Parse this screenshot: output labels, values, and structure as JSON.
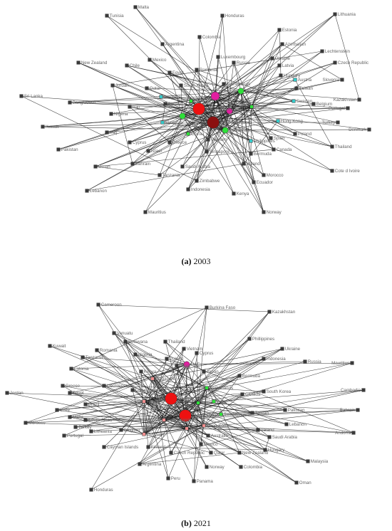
{
  "colors": {
    "small": "#3a3a3a",
    "cyan": "#36c8c8",
    "green": "#2fe03a",
    "magenta": "#e21fa0",
    "red": "#ee1111",
    "darkred": "#8b1010",
    "pink": "#f08f8f",
    "gray": "#8a8a8a"
  },
  "panels": [
    {
      "id": "a",
      "caption": {
        "letter": "(a)",
        "year": "2003"
      },
      "nodes": [
        {
          "name": "Malta",
          "size": "s",
          "color": "small"
        },
        {
          "name": "Tunisia",
          "size": "s",
          "color": "small"
        },
        {
          "name": "Honduras",
          "size": "s",
          "color": "small"
        },
        {
          "name": "Lithuania",
          "size": "s",
          "color": "small"
        },
        {
          "name": "Colombia",
          "size": "s",
          "color": "small"
        },
        {
          "name": "Argentina",
          "size": "s",
          "color": "small"
        },
        {
          "name": "Estonia",
          "size": "s",
          "color": "small"
        },
        {
          "name": "Azerbaijan",
          "size": "s",
          "color": "small"
        },
        {
          "name": "Lechtenstein",
          "size": "s",
          "color": "small"
        },
        {
          "name": "New Zealand",
          "size": "s",
          "color": "small"
        },
        {
          "name": "Mexico",
          "size": "s",
          "color": "small"
        },
        {
          "name": "Chile",
          "size": "s",
          "color": "small"
        },
        {
          "name": "Luxembourg",
          "size": "s",
          "color": "small"
        },
        {
          "name": "Ukraine",
          "size": "s",
          "color": "small"
        },
        {
          "name": "Latvia",
          "size": "s",
          "color": "small"
        },
        {
          "name": "Czech Republic",
          "size": "s",
          "color": "small"
        },
        {
          "name": "Russia",
          "size": "s",
          "color": "small"
        },
        {
          "name": "Hungary",
          "size": "s",
          "color": "small"
        },
        {
          "name": "Austria",
          "size": "s",
          "color": "cyan"
        },
        {
          "name": "Slovenia",
          "size": "s",
          "color": "small"
        },
        {
          "name": "Qatar",
          "size": "s",
          "color": "small"
        },
        {
          "name": "Jordan",
          "size": "s",
          "color": "small"
        },
        {
          "name": "Romania",
          "size": "s",
          "color": "small"
        },
        {
          "name": "Egypt",
          "size": "s",
          "color": "small"
        },
        {
          "name": "Taiwan",
          "size": "s",
          "color": "small"
        },
        {
          "name": "Sri Lanka",
          "size": "s",
          "color": "small"
        },
        {
          "name": "Bangladesh",
          "size": "s",
          "color": "small"
        },
        {
          "name": "South Korea",
          "size": "s",
          "color": "small"
        },
        {
          "name": "Australia",
          "size": "s",
          "color": "cyan"
        },
        {
          "name": "Netherlands",
          "size": "s",
          "color": "small"
        },
        {
          "name": "France",
          "size": "m",
          "color": "green"
        },
        {
          "name": "Kazakhstan",
          "size": "s",
          "color": "small"
        },
        {
          "name": "Nigeria",
          "size": "s",
          "color": "small"
        },
        {
          "name": "Iran",
          "size": "s",
          "color": "small"
        },
        {
          "name": "Belgium",
          "size": "s",
          "color": "small"
        },
        {
          "name": "Sweden",
          "size": "s",
          "color": "cyan"
        },
        {
          "name": "Portugal",
          "size": "s",
          "color": "small"
        },
        {
          "name": "Kuwait",
          "size": "s",
          "color": "small"
        },
        {
          "name": "Iraq",
          "size": "s",
          "color": "small"
        },
        {
          "name": "Malaysia",
          "size": "s",
          "color": "cyan"
        },
        {
          "name": "United States",
          "size": "xl",
          "color": "red"
        },
        {
          "name": "Germany",
          "size": "l",
          "color": "magenta"
        },
        {
          "name": "United Kingdom",
          "size": "xl",
          "color": "darkred"
        },
        {
          "name": "Italy",
          "size": "m",
          "color": "magenta"
        },
        {
          "name": "Japan",
          "size": "s",
          "color": "green"
        },
        {
          "name": "Hong Kong",
          "size": "s",
          "color": "cyan"
        },
        {
          "name": "Turkey",
          "size": "s",
          "color": "small"
        },
        {
          "name": "Denmark",
          "size": "s",
          "color": "small"
        },
        {
          "name": "South Africa",
          "size": "m",
          "color": "green"
        },
        {
          "name": "Switzerland",
          "size": "m",
          "color": "green"
        },
        {
          "name": "Finland",
          "size": "s",
          "color": "small"
        },
        {
          "name": "Poland",
          "size": "s",
          "color": "small"
        },
        {
          "name": "Cyprus",
          "size": "s",
          "color": "small"
        },
        {
          "name": "India",
          "size": "s",
          "color": "green"
        },
        {
          "name": "China",
          "size": "s",
          "color": "green"
        },
        {
          "name": "Vietnam",
          "size": "s",
          "color": "small"
        },
        {
          "name": "Philippines",
          "size": "s",
          "color": "cyan"
        },
        {
          "name": "Spain",
          "size": "s",
          "color": "small"
        },
        {
          "name": "Thailand",
          "size": "s",
          "color": "small"
        },
        {
          "name": "Pakistan",
          "size": "s",
          "color": "small"
        },
        {
          "name": "Israel",
          "size": "s",
          "color": "small"
        },
        {
          "name": "Greece",
          "size": "s",
          "color": "small"
        },
        {
          "name": "Singapore",
          "size": "s",
          "color": "small"
        },
        {
          "name": "Bermuda",
          "size": "s",
          "color": "small"
        },
        {
          "name": "Canada",
          "size": "s",
          "color": "small"
        },
        {
          "name": "Bahrain",
          "size": "s",
          "color": "small"
        },
        {
          "name": "Oman",
          "size": "s",
          "color": "small"
        },
        {
          "name": "Ireland",
          "size": "s",
          "color": "small"
        },
        {
          "name": "Morocco",
          "size": "s",
          "color": "small"
        },
        {
          "name": "Cote d Ivoire",
          "size": "s",
          "color": "small"
        },
        {
          "name": "Saudi Arabia",
          "size": "s",
          "color": "small"
        },
        {
          "name": "Ecuador",
          "size": "s",
          "color": "small"
        },
        {
          "name": "Tanzania",
          "size": "s",
          "color": "small"
        },
        {
          "name": "Zimbabwe",
          "size": "s",
          "color": "small"
        },
        {
          "name": "Lebanon",
          "size": "s",
          "color": "small"
        },
        {
          "name": "Indonesia",
          "size": "s",
          "color": "small"
        },
        {
          "name": "Kenya",
          "size": "s",
          "color": "small"
        },
        {
          "name": "Mauritius",
          "size": "s",
          "color": "small"
        },
        {
          "name": "Norway",
          "size": "s",
          "color": "small"
        }
      ],
      "hubs": [
        "United States",
        "United Kingdom",
        "Germany",
        "Italy",
        "France",
        "Japan",
        "Switzerland",
        "South Africa"
      ]
    },
    {
      "id": "b",
      "caption": {
        "letter": "(b)",
        "year": "2021"
      },
      "nodes": [
        {
          "name": "Cameroon",
          "size": "s",
          "color": "small"
        },
        {
          "name": "Burkina Faso",
          "size": "s",
          "color": "small"
        },
        {
          "name": "Kazakhstan",
          "size": "s",
          "color": "small"
        },
        {
          "name": "Vanuatu",
          "size": "s",
          "color": "small"
        },
        {
          "name": "Botswana",
          "size": "s",
          "color": "small"
        },
        {
          "name": "Phillippines",
          "size": "s",
          "color": "small"
        },
        {
          "name": "Kuwait",
          "size": "s",
          "color": "small"
        },
        {
          "name": "Romania",
          "size": "s",
          "color": "small"
        },
        {
          "name": "Thailand",
          "size": "s",
          "color": "small"
        },
        {
          "name": "Ukraine",
          "size": "s",
          "color": "small"
        },
        {
          "name": "Tanzania",
          "size": "s",
          "color": "small"
        },
        {
          "name": "Nigeria",
          "size": "s",
          "color": "small"
        },
        {
          "name": "Vietnam",
          "size": "s",
          "color": "small"
        },
        {
          "name": "Cyprus",
          "size": "s",
          "color": "small"
        },
        {
          "name": "Indonesia",
          "size": "s",
          "color": "small"
        },
        {
          "name": "Russia",
          "size": "s",
          "color": "small"
        },
        {
          "name": "Mauritius",
          "size": "s",
          "color": "small"
        },
        {
          "name": "Estonia",
          "size": "s",
          "color": "small"
        },
        {
          "name": "Poland",
          "size": "s",
          "color": "small"
        },
        {
          "name": "Israel",
          "size": "s",
          "color": "small"
        },
        {
          "name": "Japan",
          "size": "s",
          "color": "small"
        },
        {
          "name": "Kenya",
          "size": "s",
          "color": "small"
        },
        {
          "name": "UAE",
          "size": "m",
          "color": "magenta"
        },
        {
          "name": "Singapore",
          "size": "s",
          "color": "pink"
        },
        {
          "name": "Bermuda",
          "size": "s",
          "color": "small"
        },
        {
          "name": "Jordan",
          "size": "s",
          "color": "small"
        },
        {
          "name": "Greece",
          "size": "s",
          "color": "small"
        },
        {
          "name": "Liechtenstein",
          "size": "s",
          "color": "small"
        },
        {
          "name": "Egypt",
          "size": "s",
          "color": "small"
        },
        {
          "name": "Luxembourg",
          "size": "s",
          "color": "small"
        },
        {
          "name": "United Kingdom",
          "size": "xl",
          "color": "red"
        },
        {
          "name": "Netherlands",
          "size": "s",
          "color": "green"
        },
        {
          "name": "Canada",
          "size": "s",
          "color": "small"
        },
        {
          "name": "South Korea",
          "size": "s",
          "color": "small"
        },
        {
          "name": "Cambodia",
          "size": "s",
          "color": "small"
        },
        {
          "name": "Chile",
          "size": "s",
          "color": "small"
        },
        {
          "name": "Brazil",
          "size": "s",
          "color": "small"
        },
        {
          "name": "France",
          "size": "s",
          "color": "pink"
        },
        {
          "name": "China",
          "size": "s",
          "color": "green"
        },
        {
          "name": "India",
          "size": "s",
          "color": "green"
        },
        {
          "name": "Taiwan",
          "size": "s",
          "color": "small"
        },
        {
          "name": "Pakistan",
          "size": "s",
          "color": "small"
        },
        {
          "name": "Bahrain",
          "size": "s",
          "color": "small"
        },
        {
          "name": "Morocco",
          "size": "s",
          "color": "small"
        },
        {
          "name": "Malta",
          "size": "s",
          "color": "small"
        },
        {
          "name": "South Africa",
          "size": "s",
          "color": "small"
        },
        {
          "name": "Turkey",
          "size": "s",
          "color": "small"
        },
        {
          "name": "United States",
          "size": "xl",
          "color": "red"
        },
        {
          "name": "Sweden",
          "size": "s",
          "color": "green"
        },
        {
          "name": "Switzerland",
          "size": "s",
          "color": "pink"
        },
        {
          "name": "Spain",
          "size": "s",
          "color": "pink"
        },
        {
          "name": "Hong Kong",
          "size": "s",
          "color": "pink"
        },
        {
          "name": "Ireland",
          "size": "s",
          "color": "small"
        },
        {
          "name": "Lebanon",
          "size": "s",
          "color": "small"
        },
        {
          "name": "Portugal",
          "size": "s",
          "color": "small"
        },
        {
          "name": "Lithuania",
          "size": "s",
          "color": "small"
        },
        {
          "name": "Belgium",
          "size": "s",
          "color": "small"
        },
        {
          "name": "Germany",
          "size": "s",
          "color": "pink"
        },
        {
          "name": "Australia",
          "size": "s",
          "color": "small"
        },
        {
          "name": "Saudi Arabia",
          "size": "s",
          "color": "small"
        },
        {
          "name": "Andorra",
          "size": "s",
          "color": "small"
        },
        {
          "name": "Cayman Islands",
          "size": "s",
          "color": "small"
        },
        {
          "name": "Finland",
          "size": "s",
          "color": "small"
        },
        {
          "name": "Mexico",
          "size": "s",
          "color": "small"
        },
        {
          "name": "Qatar",
          "size": "s",
          "color": "small"
        },
        {
          "name": "New Zealand",
          "size": "s",
          "color": "small"
        },
        {
          "name": "Hungary",
          "size": "s",
          "color": "small"
        },
        {
          "name": "Czech Republic",
          "size": "s",
          "color": "small"
        },
        {
          "name": "Malaysia",
          "size": "s",
          "color": "small"
        },
        {
          "name": "Norway",
          "size": "s",
          "color": "small"
        },
        {
          "name": "Colombia",
          "size": "s",
          "color": "small"
        },
        {
          "name": "Argentina",
          "size": "s",
          "color": "small"
        },
        {
          "name": "Peru",
          "size": "s",
          "color": "small"
        },
        {
          "name": "Panama",
          "size": "s",
          "color": "small"
        },
        {
          "name": "Oman",
          "size": "s",
          "color": "small"
        },
        {
          "name": "Honduras",
          "size": "s",
          "color": "small"
        }
      ],
      "hubs": [
        "United States",
        "United Kingdom",
        "UAE",
        "Germany",
        "France",
        "Switzerland",
        "Singapore",
        "Netherlands",
        "China",
        "Spain",
        "Hong Kong"
      ]
    }
  ]
}
